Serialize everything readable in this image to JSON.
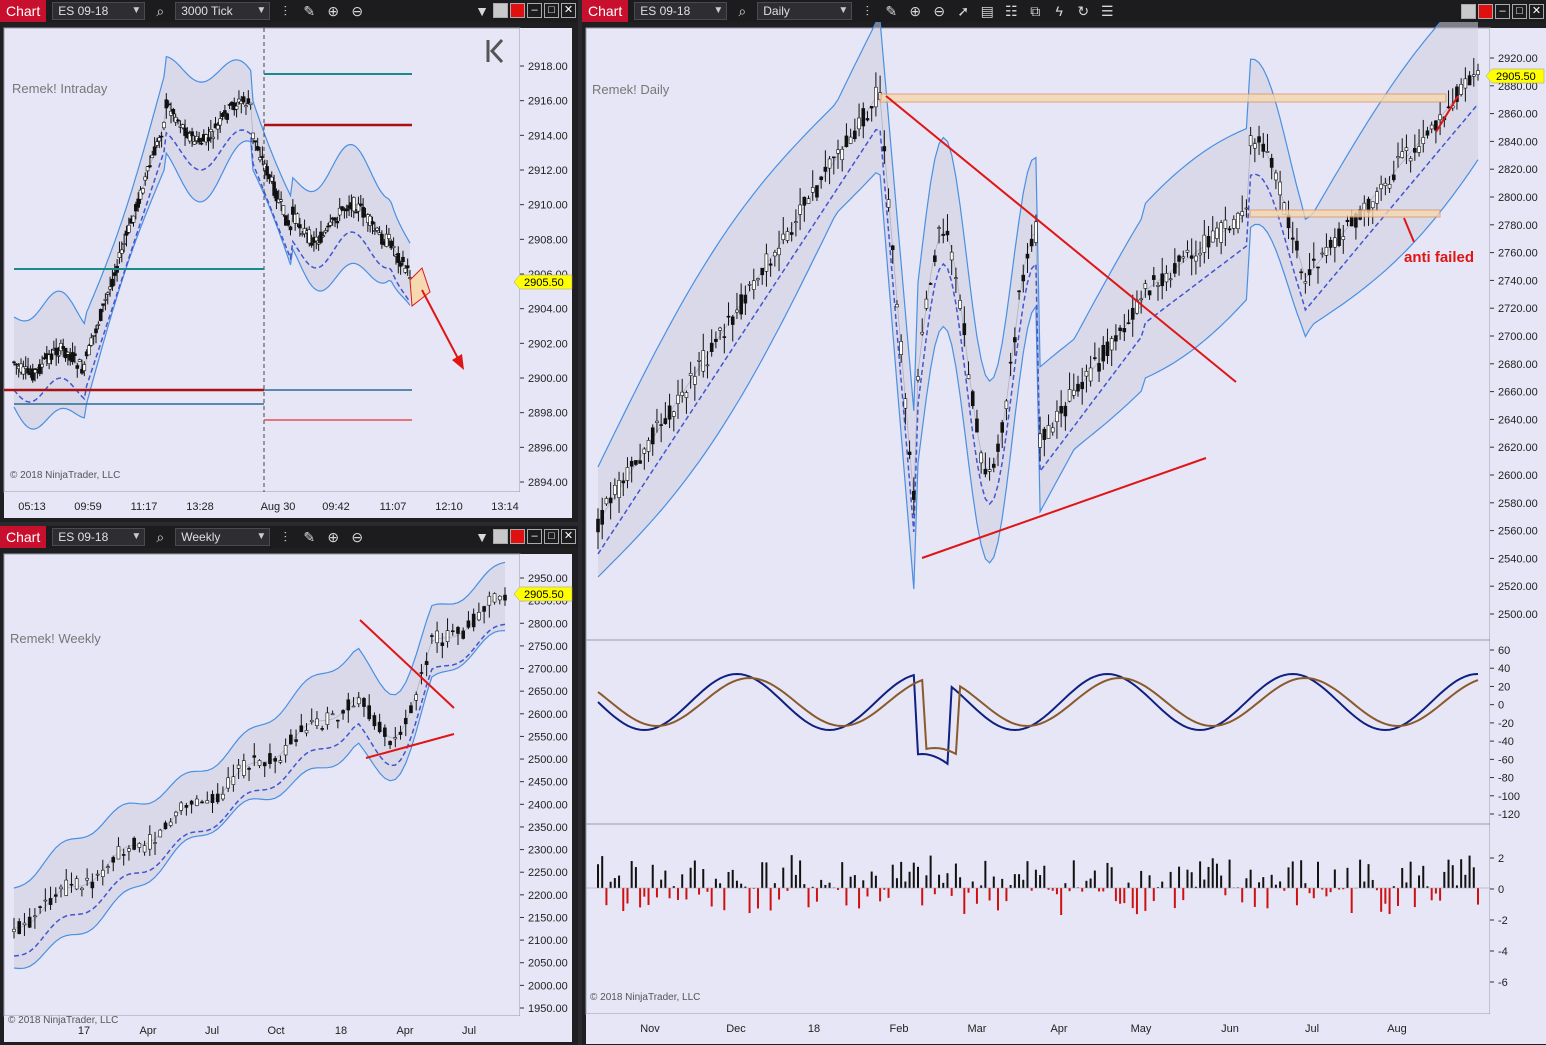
{
  "colors": {
    "background": "#e6e6f6",
    "band_fill": "#cdcde0",
    "band_line": "#4a90e2",
    "mid_line": "#4455d0",
    "price_tag": "#ffff00",
    "trend": "#e01515",
    "annotation": "#e01515"
  },
  "windows": [
    {
      "id": "intraday",
      "label": "Chart",
      "instrument": "ES 09-18",
      "period": "3000 Tick",
      "title": "Remek! Intraday",
      "copyright": "© 2018 NinjaTrader, LLC",
      "price_tag": "2905.50",
      "y_ticks": [
        "2918.00",
        "2916.00",
        "2914.00",
        "2912.00",
        "2910.00",
        "2908.00",
        "2906.00",
        "2904.00",
        "2902.00",
        "2900.00",
        "2898.00",
        "2896.00",
        "2894.00"
      ],
      "x_ticks": [
        "05:13",
        "09:59",
        "11:17",
        "13:28",
        "Aug 30",
        "09:42",
        "11:07",
        "12:10",
        "13:14"
      ]
    },
    {
      "id": "weekly",
      "label": "Chart",
      "instrument": "ES 09-18",
      "period": "Weekly",
      "title": "Remek! Weekly",
      "copyright": "© 2018 NinjaTrader, LLC",
      "price_tag": "2905.50",
      "y_ticks": [
        "2950.00",
        "2850.00",
        "2800.00",
        "2750.00",
        "2700.00",
        "2650.00",
        "2600.00",
        "2550.00",
        "2500.00",
        "2450.00",
        "2400.00",
        "2350.00",
        "2300.00",
        "2250.00",
        "2200.00",
        "2150.00",
        "2100.00",
        "2050.00",
        "2000.00",
        "1950.00"
      ],
      "x_ticks": [
        "17",
        "Apr",
        "Jul",
        "Oct",
        "18",
        "Apr",
        "Jul"
      ]
    },
    {
      "id": "daily",
      "label": "Chart",
      "instrument": "ES 09-18",
      "period": "Daily",
      "title": "Remek! Daily",
      "copyright": "© 2018 NinjaTrader, LLC",
      "price_tag": "2905.50",
      "annotation": "anti failed",
      "y_ticks": [
        "2920.00",
        "2880.00",
        "2860.00",
        "2840.00",
        "2820.00",
        "2800.00",
        "2780.00",
        "2760.00",
        "2740.00",
        "2720.00",
        "2700.00",
        "2680.00",
        "2660.00",
        "2640.00",
        "2620.00",
        "2600.00",
        "2580.00",
        "2560.00",
        "2540.00",
        "2520.00",
        "2500.00"
      ],
      "osc_ticks": [
        "60",
        "40",
        "20",
        "0",
        "-20",
        "-40",
        "-60",
        "-80",
        "-100",
        "-120"
      ],
      "hist_ticks": [
        "2",
        "0",
        "-2",
        "-4",
        "-6"
      ],
      "x_ticks": [
        "Nov",
        "Dec",
        "18",
        "Feb",
        "Mar",
        "Apr",
        "May",
        "Jun",
        "Jul",
        "Aug"
      ]
    }
  ]
}
